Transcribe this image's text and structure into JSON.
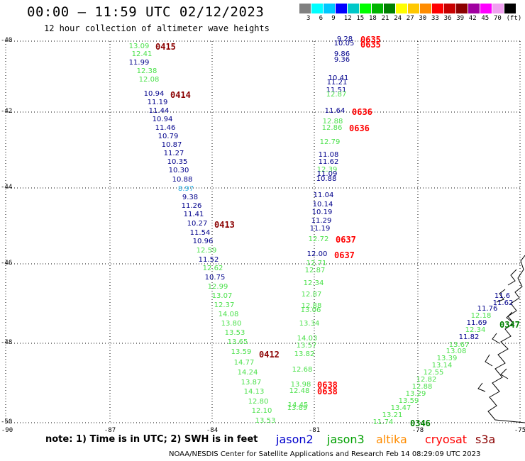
{
  "header": {
    "title": "00:00 – 11:59 UTC 02/12/2023",
    "subtitle": "12 hour collection of altimeter wave heights"
  },
  "legend": {
    "colors": [
      "#808080",
      "#00ffff",
      "#00c8ff",
      "#0000ff",
      "#00c8c8",
      "#00ff00",
      "#00b400",
      "#008000",
      "#ffff00",
      "#ffc800",
      "#ff8c00",
      "#ff0000",
      "#c80000",
      "#8b0000",
      "#a000a0",
      "#ff00ff",
      "#f0a0f0",
      "#000000"
    ],
    "labels": [
      "3",
      "6",
      "9",
      "12",
      "15",
      "18",
      "21",
      "24",
      "27",
      "30",
      "33",
      "36",
      "39",
      "42",
      "45",
      "70",
      "(ft)"
    ]
  },
  "axes": {
    "y_labels": [
      "-40",
      "-42",
      "-44",
      "-46",
      "-48",
      "-50"
    ],
    "x_labels": [
      "-90",
      "-87",
      "-84",
      "-81",
      "-78",
      "-75"
    ]
  },
  "swh_points": [
    {
      "v": "13.09",
      "c": "g"
    },
    {
      "v": "12.41",
      "c": "g"
    },
    {
      "v": "11.99",
      "c": "y"
    },
    {
      "v": "12.38",
      "c": "g"
    },
    {
      "v": "12.08",
      "c": "g"
    },
    {
      "v": "10.94",
      "c": "y"
    },
    {
      "v": "11.19",
      "c": "y"
    },
    {
      "v": "11.44",
      "c": "y"
    },
    {
      "v": "10.94",
      "c": "y"
    },
    {
      "v": "11.46",
      "c": "y"
    },
    {
      "v": "10.79",
      "c": "y"
    },
    {
      "v": "10.87",
      "c": "y"
    },
    {
      "v": "11.27",
      "c": "y"
    },
    {
      "v": "10.35",
      "c": "y"
    },
    {
      "v": "10.30",
      "c": "y"
    },
    {
      "v": "10.88",
      "c": "y"
    },
    {
      "v": "8.97",
      "c": "lb"
    },
    {
      "v": "9.38",
      "c": "y"
    },
    {
      "v": "11.26",
      "c": "y"
    },
    {
      "v": "11.41",
      "c": "y"
    },
    {
      "v": "10.27",
      "c": "y"
    },
    {
      "v": "11.54",
      "c": "y"
    },
    {
      "v": "10.96",
      "c": "y"
    },
    {
      "v": "12.59",
      "c": "g"
    },
    {
      "v": "11.52",
      "c": "y"
    },
    {
      "v": "12.62",
      "c": "g"
    },
    {
      "v": "10.75",
      "c": "y"
    },
    {
      "v": "12.99",
      "c": "g"
    },
    {
      "v": "13.07",
      "c": "g"
    },
    {
      "v": "12.37",
      "c": "g"
    },
    {
      "v": "14.08",
      "c": "g"
    },
    {
      "v": "13.80",
      "c": "g"
    },
    {
      "v": "13.53",
      "c": "g"
    },
    {
      "v": "13.65",
      "c": "g"
    },
    {
      "v": "13.59",
      "c": "g"
    },
    {
      "v": "14.77",
      "c": "g"
    },
    {
      "v": "14.24",
      "c": "g"
    },
    {
      "v": "13.87",
      "c": "g"
    },
    {
      "v": "14.13",
      "c": "g"
    },
    {
      "v": "12.80",
      "c": "g"
    },
    {
      "v": "12.10",
      "c": "g"
    },
    {
      "v": "13.53",
      "c": "g"
    },
    {
      "v": "9.28",
      "c": "y"
    },
    {
      "v": "10.05",
      "c": "y"
    },
    {
      "v": "9.86",
      "c": "y"
    },
    {
      "v": "9.36",
      "c": "y"
    },
    {
      "v": "10.41",
      "c": "y"
    },
    {
      "v": "11.21",
      "c": "y"
    },
    {
      "v": "11.51",
      "c": "y"
    },
    {
      "v": "12.87",
      "c": "g"
    },
    {
      "v": "11.64",
      "c": "y"
    },
    {
      "v": "12.88",
      "c": "g"
    },
    {
      "v": "12.86",
      "c": "g"
    },
    {
      "v": "12.79",
      "c": "g"
    },
    {
      "v": "11.08",
      "c": "y"
    },
    {
      "v": "11.62",
      "c": "y"
    },
    {
      "v": "12.39",
      "c": "g"
    },
    {
      "v": "11.09",
      "c": "y"
    },
    {
      "v": "10.88",
      "c": "y"
    },
    {
      "v": "11.04",
      "c": "y"
    },
    {
      "v": "10.14",
      "c": "y"
    },
    {
      "v": "10.19",
      "c": "y"
    },
    {
      "v": "11.29",
      "c": "y"
    },
    {
      "v": "11.19",
      "c": "y"
    },
    {
      "v": "12.72",
      "c": "g"
    },
    {
      "v": "12.00",
      "c": "y"
    },
    {
      "v": "12.71",
      "c": "g"
    },
    {
      "v": "12.87",
      "c": "g"
    },
    {
      "v": "12.34",
      "c": "g"
    },
    {
      "v": "12.87",
      "c": "g"
    },
    {
      "v": "12.88",
      "c": "g"
    },
    {
      "v": "13.06",
      "c": "g"
    },
    {
      "v": "13.34",
      "c": "g"
    },
    {
      "v": "14.03",
      "c": "g"
    },
    {
      "v": "13.57",
      "c": "g"
    },
    {
      "v": "13.82",
      "c": "g"
    },
    {
      "v": "12.68",
      "c": "g"
    },
    {
      "v": "13.98",
      "c": "g"
    },
    {
      "v": "12.48",
      "c": "g"
    },
    {
      "v": "14.45",
      "c": "g"
    },
    {
      "v": "13.89",
      "c": "g"
    },
    {
      "v": "11.62",
      "c": "y"
    },
    {
      "v": "11.76",
      "c": "y"
    },
    {
      "v": "12.18",
      "c": "g"
    },
    {
      "v": "11.69",
      "c": "y"
    },
    {
      "v": "12.34",
      "c": "g"
    },
    {
      "v": "11.82",
      "c": "y"
    },
    {
      "v": "13.67",
      "c": "g"
    },
    {
      "v": "13.08",
      "c": "g"
    },
    {
      "v": "13.39",
      "c": "g"
    },
    {
      "v": "13.14",
      "c": "g"
    },
    {
      "v": "12.55",
      "c": "g"
    },
    {
      "v": "12.82",
      "c": "g"
    },
    {
      "v": "12.88",
      "c": "g"
    },
    {
      "v": "13.29",
      "c": "g"
    },
    {
      "v": "13.59",
      "c": "g"
    },
    {
      "v": "13.47",
      "c": "g"
    },
    {
      "v": "13.21",
      "c": "g"
    },
    {
      "v": "11.74",
      "c": "g"
    },
    {
      "v": "11.6",
      "c": "y"
    }
  ],
  "time_labels": [
    {
      "t": "0415",
      "color": "#8b0000"
    },
    {
      "t": "0414",
      "color": "#8b0000"
    },
    {
      "t": "0413",
      "color": "#8b0000"
    },
    {
      "t": "0412",
      "color": "#8b0000"
    },
    {
      "t": "0635",
      "color": "#ff0000"
    },
    {
      "t": "0635",
      "color": "#ff0000"
    },
    {
      "t": "0636",
      "color": "#ff0000"
    },
    {
      "t": "0636",
      "color": "#ff0000"
    },
    {
      "t": "0637",
      "color": "#ff0000"
    },
    {
      "t": "0637",
      "color": "#ff0000"
    },
    {
      "t": "0638",
      "color": "#ff0000"
    },
    {
      "t": "0638",
      "color": "#ff0000"
    },
    {
      "t": "0346",
      "color": "#008000"
    },
    {
      "t": "0347",
      "color": "#008000"
    }
  ],
  "note": "note:  1) Time is in UTC;  2) SWH is in feet",
  "satellites": [
    {
      "name": "jason2",
      "color": "#0000cc"
    },
    {
      "name": "jason3",
      "color": "#00a000"
    },
    {
      "name": "altika",
      "color": "#ff8c00"
    },
    {
      "name": "cryosat",
      "color": "#ff0000"
    },
    {
      "name": "s3a",
      "color": "#8b0000"
    }
  ],
  "footer": "NOAA/NESDIS Center for Satellite Applications and Research    Feb 14 08:29:09 UTC 2023"
}
